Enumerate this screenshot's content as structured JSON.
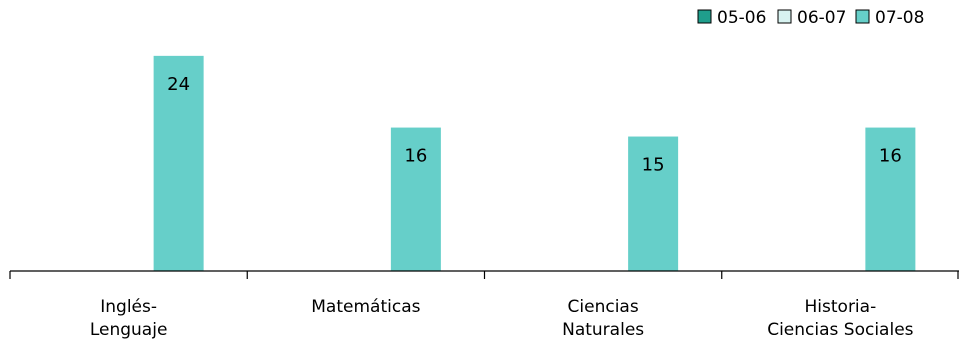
{
  "chart_data": {
    "type": "bar",
    "categories": [
      [
        "Inglés-",
        "Lenguaje"
      ],
      [
        "Matemáticas"
      ],
      [
        "Ciencias",
        "Naturales"
      ],
      [
        "Historia-",
        "Ciencias Sociales"
      ]
    ],
    "series": [
      {
        "name": "05-06",
        "values": [
          null,
          null,
          null,
          null
        ],
        "color": "#1f9e8c"
      },
      {
        "name": "06-07",
        "values": [
          null,
          null,
          null,
          null
        ],
        "color": "#d8f3f1"
      },
      {
        "name": "07-08",
        "values": [
          24,
          16,
          15,
          16
        ],
        "color": "#66cfc9"
      }
    ],
    "data_labels": [
      "24",
      "16",
      "15",
      "16"
    ],
    "ylim": [
      0,
      28
    ],
    "grid": false,
    "legend": "top-right"
  }
}
